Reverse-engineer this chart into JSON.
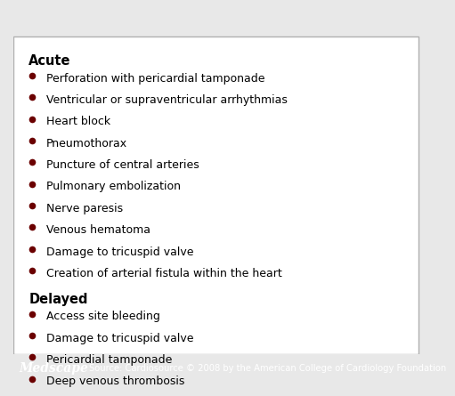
{
  "bg_color": "#e8e8e8",
  "content_bg": "#ffffff",
  "border_color": "#b0b0b0",
  "acute_header": "Acute",
  "delayed_header": "Delayed",
  "header_color": "#000000",
  "bullet_color": "#6b0000",
  "text_color": "#000000",
  "acute_items": [
    "Perforation with pericardial tamponade",
    "Ventricular or supraventricular arrhythmias",
    "Heart block",
    "Pneumothorax",
    "Puncture of central arteries",
    "Pulmonary embolization",
    "Nerve paresis",
    "Venous hematoma",
    "Damage to tricuspid valve",
    "Creation of arterial fistula within the heart"
  ],
  "delayed_items": [
    "Access site bleeding",
    "Damage to tricuspid valve",
    "Pericardial tamponade",
    "Deep venous thrombosis"
  ],
  "footer_bg": "#1a6b9a",
  "footer_brand": "Medscape",
  "footer_source": "Source: Cardiosource © 2008 by the American College of Cardiology Foundation",
  "footer_text_color": "#ffffff",
  "footer_brand_color": "#ffffff",
  "header_fontsize": 10.5,
  "item_fontsize": 9.0,
  "footer_fontsize": 7.2,
  "brand_fontsize": 10.0,
  "bullet_size": 5.5
}
